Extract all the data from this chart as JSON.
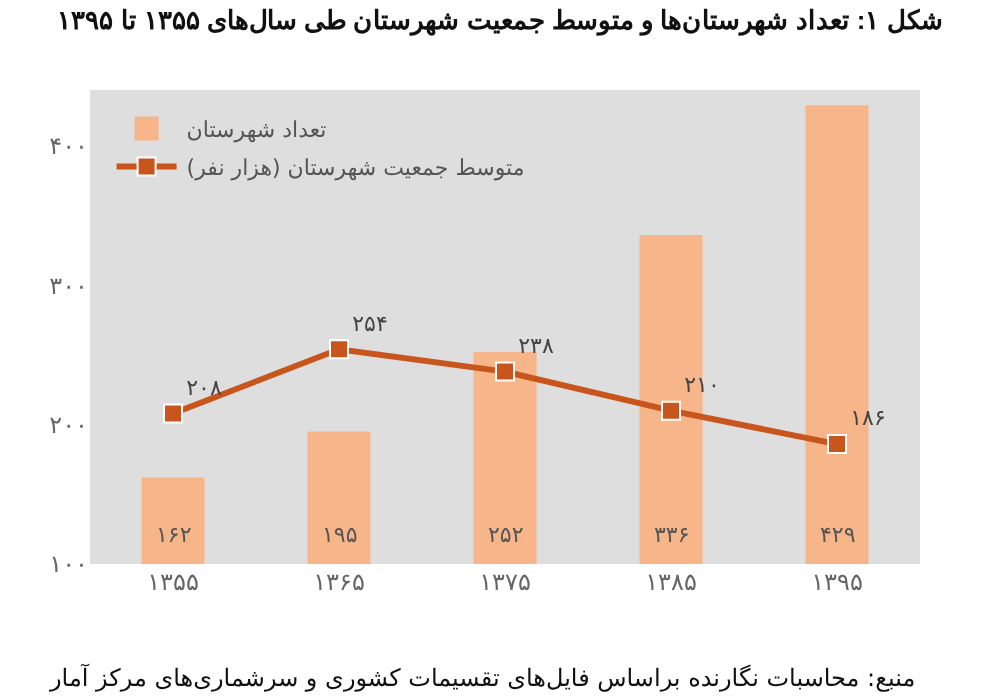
{
  "chart_data": {
    "type": "bar",
    "title": "شکل ۱: تعداد شهرستان‌ها و متوسط جمعیت شهرستان طی سال‌های ۱۳۵۵ تا ۱۳۹۵",
    "categories": [
      "۱۳۵۵",
      "۱۳۶۵",
      "۱۳۷۵",
      "۱۳۸۵",
      "۱۳۹۵"
    ],
    "series": [
      {
        "name": "تعداد شهرستان",
        "color": "#f7b58a",
        "values": [
          162,
          195,
          252,
          336,
          429
        ],
        "value_labels": [
          "۱۶۲",
          "۱۹۵",
          "۲۵۲",
          "۳۳۶",
          "۴۲۹"
        ]
      },
      {
        "name": "متوسط جمعیت شهرستان (هزار نفر)",
        "type": "line",
        "color": "#c8561c",
        "marker": "square",
        "line_style": "solid",
        "values": [
          208,
          254,
          238,
          210,
          186
        ],
        "value_labels": [
          "۲۰۸",
          "۲۵۴",
          "۲۳۸",
          "۲۱۰",
          "۱۸۶"
        ]
      }
    ],
    "ylim": [
      100,
      440
    ],
    "yticks": [
      {
        "value": 100,
        "label": "۱۰۰"
      },
      {
        "value": 200,
        "label": "۲۰۰"
      },
      {
        "value": 300,
        "label": "۳۰۰"
      },
      {
        "value": 400,
        "label": "۴۰۰"
      }
    ],
    "grid": false,
    "legend": "top left",
    "annotations": [
      "منبع: محاسبات نگارنده براساس فایل‌های تقسیمات کشوری و سرشماری‌های مرکز آمار"
    ]
  }
}
